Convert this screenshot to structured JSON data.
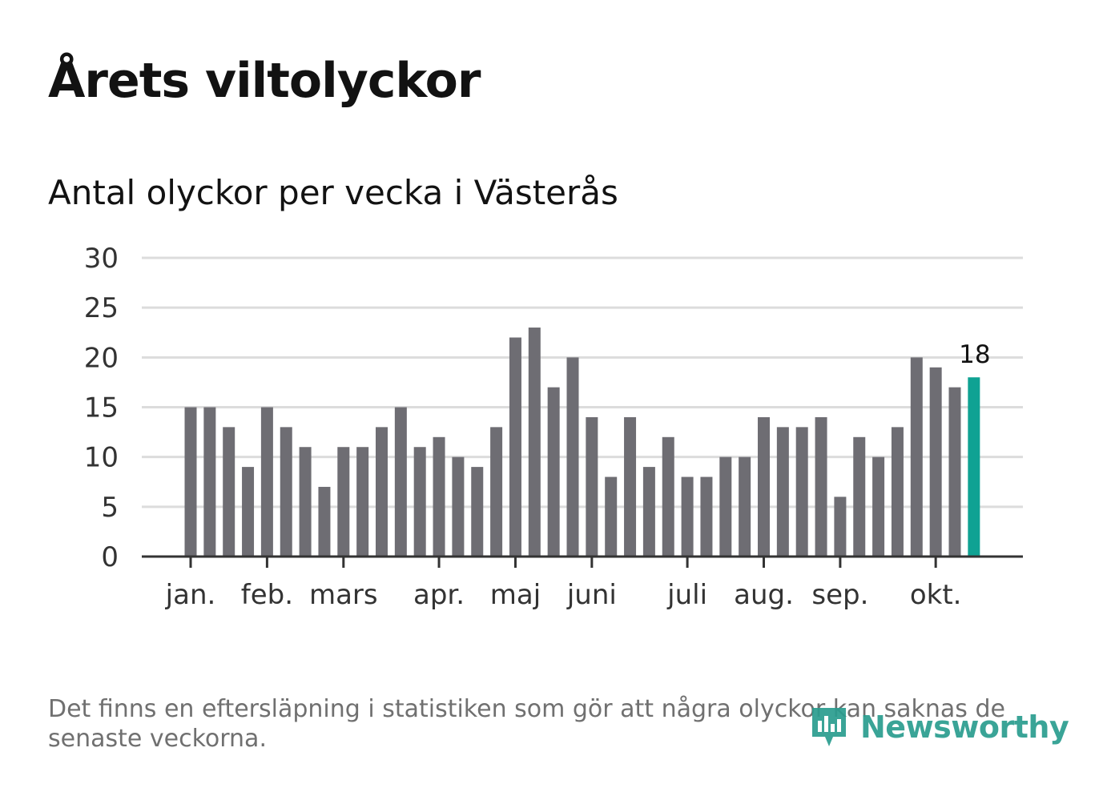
{
  "title": "Årets viltolyckor",
  "subtitle": "Antal olyckor per vecka i Västerås",
  "footnote": "Det finns en eftersläpning i statistiken som gör att några olyckor kan saknas de senaste veckorna.",
  "brand": {
    "name": "Newsworthy",
    "color": "#2a9d8f",
    "icon": "bar-chart-speech-bubble-icon"
  },
  "colors": {
    "bar": "#6e6d73",
    "highlight": "#0fa293",
    "grid": "#dcdcdc",
    "axis": "#333333",
    "tick_text": "#333333"
  },
  "chart_data": {
    "type": "bar",
    "title": "Årets viltolyckor",
    "subtitle": "Antal olyckor per vecka i Västerås",
    "xlabel": "",
    "ylabel": "",
    "ylim": [
      0,
      30
    ],
    "yticks": [
      0,
      5,
      10,
      15,
      20,
      25,
      30
    ],
    "grid": true,
    "weeks": [
      1,
      2,
      3,
      4,
      5,
      6,
      7,
      8,
      9,
      10,
      11,
      12,
      13,
      14,
      15,
      16,
      17,
      18,
      19,
      20,
      21,
      22,
      23,
      24,
      25,
      26,
      27,
      28,
      29,
      30,
      31,
      32,
      33,
      34,
      35,
      36,
      37,
      38,
      39,
      40,
      41,
      42
    ],
    "values": [
      15,
      15,
      13,
      9,
      15,
      13,
      11,
      7,
      11,
      11,
      13,
      15,
      11,
      12,
      10,
      9,
      13,
      22,
      23,
      17,
      20,
      14,
      8,
      14,
      9,
      12,
      8,
      8,
      10,
      10,
      14,
      13,
      13,
      14,
      6,
      12,
      10,
      13,
      20,
      19,
      17,
      18
    ],
    "highlight_index": 41,
    "highlight_label": "18",
    "month_ticks": [
      {
        "label": "jan.",
        "week": 1.5
      },
      {
        "label": "feb.",
        "week": 5.5
      },
      {
        "label": "mars",
        "week": 9.5
      },
      {
        "label": "apr.",
        "week": 14.5
      },
      {
        "label": "maj",
        "week": 18.5
      },
      {
        "label": "juni",
        "week": 22.5
      },
      {
        "label": "juli",
        "week": 27.5
      },
      {
        "label": "aug.",
        "week": 31.5
      },
      {
        "label": "sep.",
        "week": 35.5
      },
      {
        "label": "okt.",
        "week": 40.5
      }
    ]
  }
}
